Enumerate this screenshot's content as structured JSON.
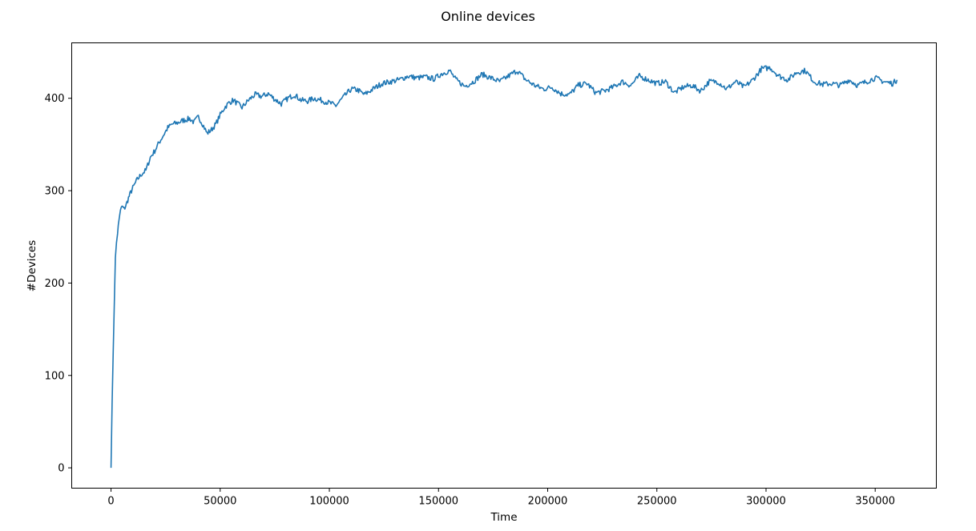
{
  "chart_data": {
    "type": "line",
    "title": "Online devices",
    "xlabel": "Time",
    "ylabel": "#Devices",
    "xlim": [
      -18000,
      378000
    ],
    "ylim": [
      -22,
      460
    ],
    "xticks": [
      0,
      50000,
      100000,
      150000,
      200000,
      250000,
      300000,
      350000
    ],
    "yticks": [
      0,
      100,
      200,
      300,
      400
    ],
    "grid": false,
    "legend": "none",
    "series": [
      {
        "color": "#1f77b4",
        "x": [
          0,
          500,
          1000,
          1500,
          2000,
          2500,
          3000,
          4000,
          5000,
          6000,
          7000,
          8000,
          9000,
          10000,
          12000,
          14000,
          16000,
          18000,
          20000,
          22000,
          24000,
          26000,
          28000,
          30000,
          33000,
          36000,
          38000,
          40000,
          42000,
          44000,
          46000,
          48000,
          50000,
          52000,
          54000,
          56000,
          58000,
          60000,
          63000,
          66000,
          69000,
          72000,
          75000,
          78000,
          81000,
          84000,
          87000,
          90000,
          93000,
          96000,
          100000,
          103000,
          106000,
          110000,
          113000,
          116000,
          120000,
          124000,
          128000,
          132000,
          136000,
          140000,
          144000,
          148000,
          151000,
          155000,
          158000,
          162000,
          166000,
          170000,
          174000,
          178000,
          182000,
          186000,
          190000,
          194000,
          198000,
          202000,
          206000,
          210000,
          214000,
          218000,
          222000,
          226000,
          230000,
          234000,
          238000,
          242000,
          246000,
          250000,
          254000,
          258000,
          262000,
          266000,
          270000,
          274000,
          278000,
          282000,
          286000,
          290000,
          294000,
          298000,
          302000,
          306000,
          310000,
          314000,
          318000,
          322000,
          326000,
          330000,
          334000,
          338000,
          342000,
          346000,
          350000,
          354000,
          358000,
          360000
        ],
        "values": [
          0,
          70,
          125,
          180,
          225,
          245,
          255,
          275,
          283,
          280,
          285,
          292,
          298,
          303,
          312,
          318,
          322,
          336,
          343,
          352,
          360,
          368,
          372,
          373,
          376,
          378,
          374,
          380,
          372,
          362,
          366,
          372,
          382,
          390,
          395,
          398,
          394,
          390,
          398,
          404,
          402,
          405,
          399,
          394,
          400,
          404,
          398,
          397,
          400,
          398,
          395,
          392,
          400,
          410,
          409,
          404,
          410,
          416,
          418,
          420,
          424,
          422,
          423,
          421,
          426,
          430,
          420,
          413,
          418,
          426,
          422,
          418,
          424,
          430,
          420,
          414,
          410,
          412,
          405,
          404,
          414,
          416,
          406,
          408,
          412,
          418,
          414,
          424,
          420,
          416,
          418,
          406,
          412,
          414,
          408,
          418,
          418,
          410,
          418,
          412,
          420,
          432,
          433,
          424,
          420,
          428,
          430,
          418,
          415,
          416,
          414,
          420,
          414,
          418,
          422,
          418,
          416,
          420
        ]
      }
    ]
  }
}
